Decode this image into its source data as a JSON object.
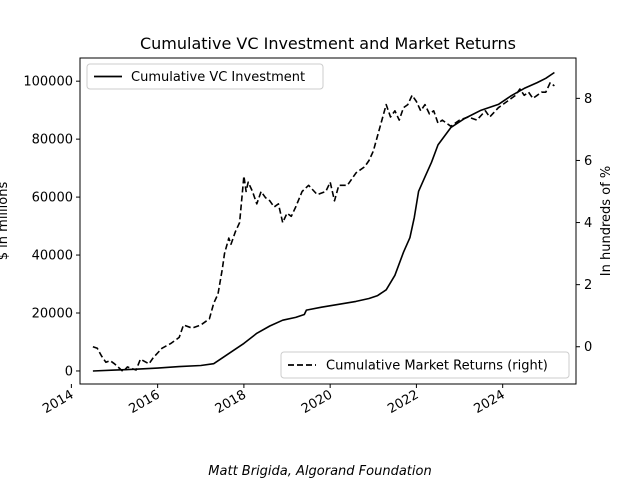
{
  "chart_data": {
    "type": "line",
    "title": "Cumulative VC Investment and Market Returns",
    "xlabel": "",
    "ylabel": "$ in millions",
    "y2label": "In hundreds of %",
    "caption": "Matt Brigida, Algorand Foundation",
    "xlim": [
      2014.2,
      2025.7
    ],
    "ylim": [
      -4500,
      108000
    ],
    "y2lim": [
      -1.2,
      9.3
    ],
    "x_ticks": [
      2014,
      2016,
      2018,
      2020,
      2022,
      2024
    ],
    "x_tick_labels": [
      "2014",
      "2016",
      "2018",
      "2020",
      "2022",
      "2024"
    ],
    "y_ticks": [
      0,
      20000,
      40000,
      60000,
      80000,
      100000
    ],
    "y_tick_labels": [
      "0",
      "20000",
      "40000",
      "60000",
      "80000",
      "100000"
    ],
    "y2_ticks": [
      0,
      2,
      4,
      6,
      8
    ],
    "y2_tick_labels": [
      "0",
      "2",
      "4",
      "6",
      "8"
    ],
    "legend_left": {
      "label": "Cumulative VC Investment",
      "position": "upper-left"
    },
    "legend_right": {
      "label": "Cumulative Market Returns (right)",
      "position": "lower-right"
    },
    "series": [
      {
        "name": "Cumulative VC Investment",
        "axis": "left",
        "style": "solid",
        "points": [
          [
            2014.5,
            0
          ],
          [
            2015,
            300
          ],
          [
            2015.5,
            600
          ],
          [
            2016,
            1000
          ],
          [
            2016.5,
            1500
          ],
          [
            2017,
            1900
          ],
          [
            2017.3,
            2500
          ],
          [
            2017.5,
            4500
          ],
          [
            2017.8,
            7500
          ],
          [
            2018,
            9500
          ],
          [
            2018.3,
            13000
          ],
          [
            2018.6,
            15500
          ],
          [
            2018.9,
            17500
          ],
          [
            2019.2,
            18500
          ],
          [
            2019.4,
            19500
          ],
          [
            2019.45,
            21000
          ],
          [
            2019.8,
            22000
          ],
          [
            2020.2,
            23000
          ],
          [
            2020.6,
            24000
          ],
          [
            2020.9,
            25000
          ],
          [
            2021.1,
            26000
          ],
          [
            2021.3,
            28000
          ],
          [
            2021.5,
            33000
          ],
          [
            2021.7,
            41000
          ],
          [
            2021.85,
            46000
          ],
          [
            2021.95,
            53000
          ],
          [
            2022.05,
            62000
          ],
          [
            2022.2,
            67000
          ],
          [
            2022.35,
            72000
          ],
          [
            2022.5,
            78000
          ],
          [
            2022.8,
            84000
          ],
          [
            2023.1,
            87000
          ],
          [
            2023.5,
            90000
          ],
          [
            2023.9,
            92000
          ],
          [
            2024.2,
            95000
          ],
          [
            2024.5,
            97500
          ],
          [
            2024.8,
            99500
          ],
          [
            2025.0,
            101000
          ],
          [
            2025.2,
            103000
          ]
        ]
      },
      {
        "name": "Cumulative Market Returns (right)",
        "axis": "right",
        "style": "dashed",
        "points": [
          [
            2014.5,
            0.0
          ],
          [
            2014.6,
            -0.05
          ],
          [
            2014.7,
            -0.3
          ],
          [
            2014.8,
            -0.5
          ],
          [
            2014.9,
            -0.45
          ],
          [
            2015,
            -0.55
          ],
          [
            2015.2,
            -0.8
          ],
          [
            2015.3,
            -0.65
          ],
          [
            2015.5,
            -0.75
          ],
          [
            2015.6,
            -0.4
          ],
          [
            2015.8,
            -0.55
          ],
          [
            2015.9,
            -0.35
          ],
          [
            2016,
            -0.2
          ],
          [
            2016.1,
            -0.05
          ],
          [
            2016.3,
            0.1
          ],
          [
            2016.5,
            0.3
          ],
          [
            2016.6,
            0.7
          ],
          [
            2016.8,
            0.6
          ],
          [
            2017,
            0.7
          ],
          [
            2017.2,
            0.9
          ],
          [
            2017.3,
            1.4
          ],
          [
            2017.4,
            1.7
          ],
          [
            2017.5,
            2.5
          ],
          [
            2017.55,
            3.0
          ],
          [
            2017.65,
            3.5
          ],
          [
            2017.7,
            3.3
          ],
          [
            2017.8,
            3.7
          ],
          [
            2017.9,
            4.0
          ],
          [
            2018.0,
            5.5
          ],
          [
            2018.05,
            5.0
          ],
          [
            2018.1,
            5.3
          ],
          [
            2018.2,
            5.0
          ],
          [
            2018.3,
            4.6
          ],
          [
            2018.4,
            5.0
          ],
          [
            2018.5,
            4.8
          ],
          [
            2018.6,
            4.7
          ],
          [
            2018.7,
            4.5
          ],
          [
            2018.8,
            4.6
          ],
          [
            2018.9,
            4.0
          ],
          [
            2019.0,
            4.3
          ],
          [
            2019.1,
            4.2
          ],
          [
            2019.2,
            4.5
          ],
          [
            2019.35,
            5.0
          ],
          [
            2019.5,
            5.2
          ],
          [
            2019.7,
            4.9
          ],
          [
            2019.9,
            5.0
          ],
          [
            2020.0,
            5.3
          ],
          [
            2020.1,
            4.7
          ],
          [
            2020.2,
            5.2
          ],
          [
            2020.4,
            5.2
          ],
          [
            2020.6,
            5.6
          ],
          [
            2020.8,
            5.8
          ],
          [
            2020.9,
            6.0
          ],
          [
            2021.0,
            6.3
          ],
          [
            2021.1,
            6.8
          ],
          [
            2021.2,
            7.3
          ],
          [
            2021.3,
            7.8
          ],
          [
            2021.4,
            7.4
          ],
          [
            2021.5,
            7.6
          ],
          [
            2021.6,
            7.3
          ],
          [
            2021.7,
            7.7
          ],
          [
            2021.8,
            7.8
          ],
          [
            2021.9,
            8.1
          ],
          [
            2022.0,
            7.9
          ],
          [
            2022.1,
            7.6
          ],
          [
            2022.2,
            7.8
          ],
          [
            2022.3,
            7.5
          ],
          [
            2022.4,
            7.6
          ],
          [
            2022.5,
            7.2
          ],
          [
            2022.6,
            7.3
          ],
          [
            2022.8,
            7.1
          ],
          [
            2022.9,
            7.2
          ],
          [
            2023.0,
            7.3
          ],
          [
            2023.2,
            7.4
          ],
          [
            2023.4,
            7.3
          ],
          [
            2023.6,
            7.6
          ],
          [
            2023.7,
            7.4
          ],
          [
            2023.9,
            7.7
          ],
          [
            2024.0,
            7.8
          ],
          [
            2024.1,
            7.9
          ],
          [
            2024.2,
            8.0
          ],
          [
            2024.3,
            8.1
          ],
          [
            2024.4,
            8.3
          ],
          [
            2024.5,
            8.1
          ],
          [
            2024.6,
            8.2
          ],
          [
            2024.7,
            8.0
          ],
          [
            2024.8,
            8.1
          ],
          [
            2024.9,
            8.2
          ],
          [
            2025.0,
            8.2
          ],
          [
            2025.1,
            8.5
          ],
          [
            2025.2,
            8.4
          ]
        ]
      }
    ]
  }
}
